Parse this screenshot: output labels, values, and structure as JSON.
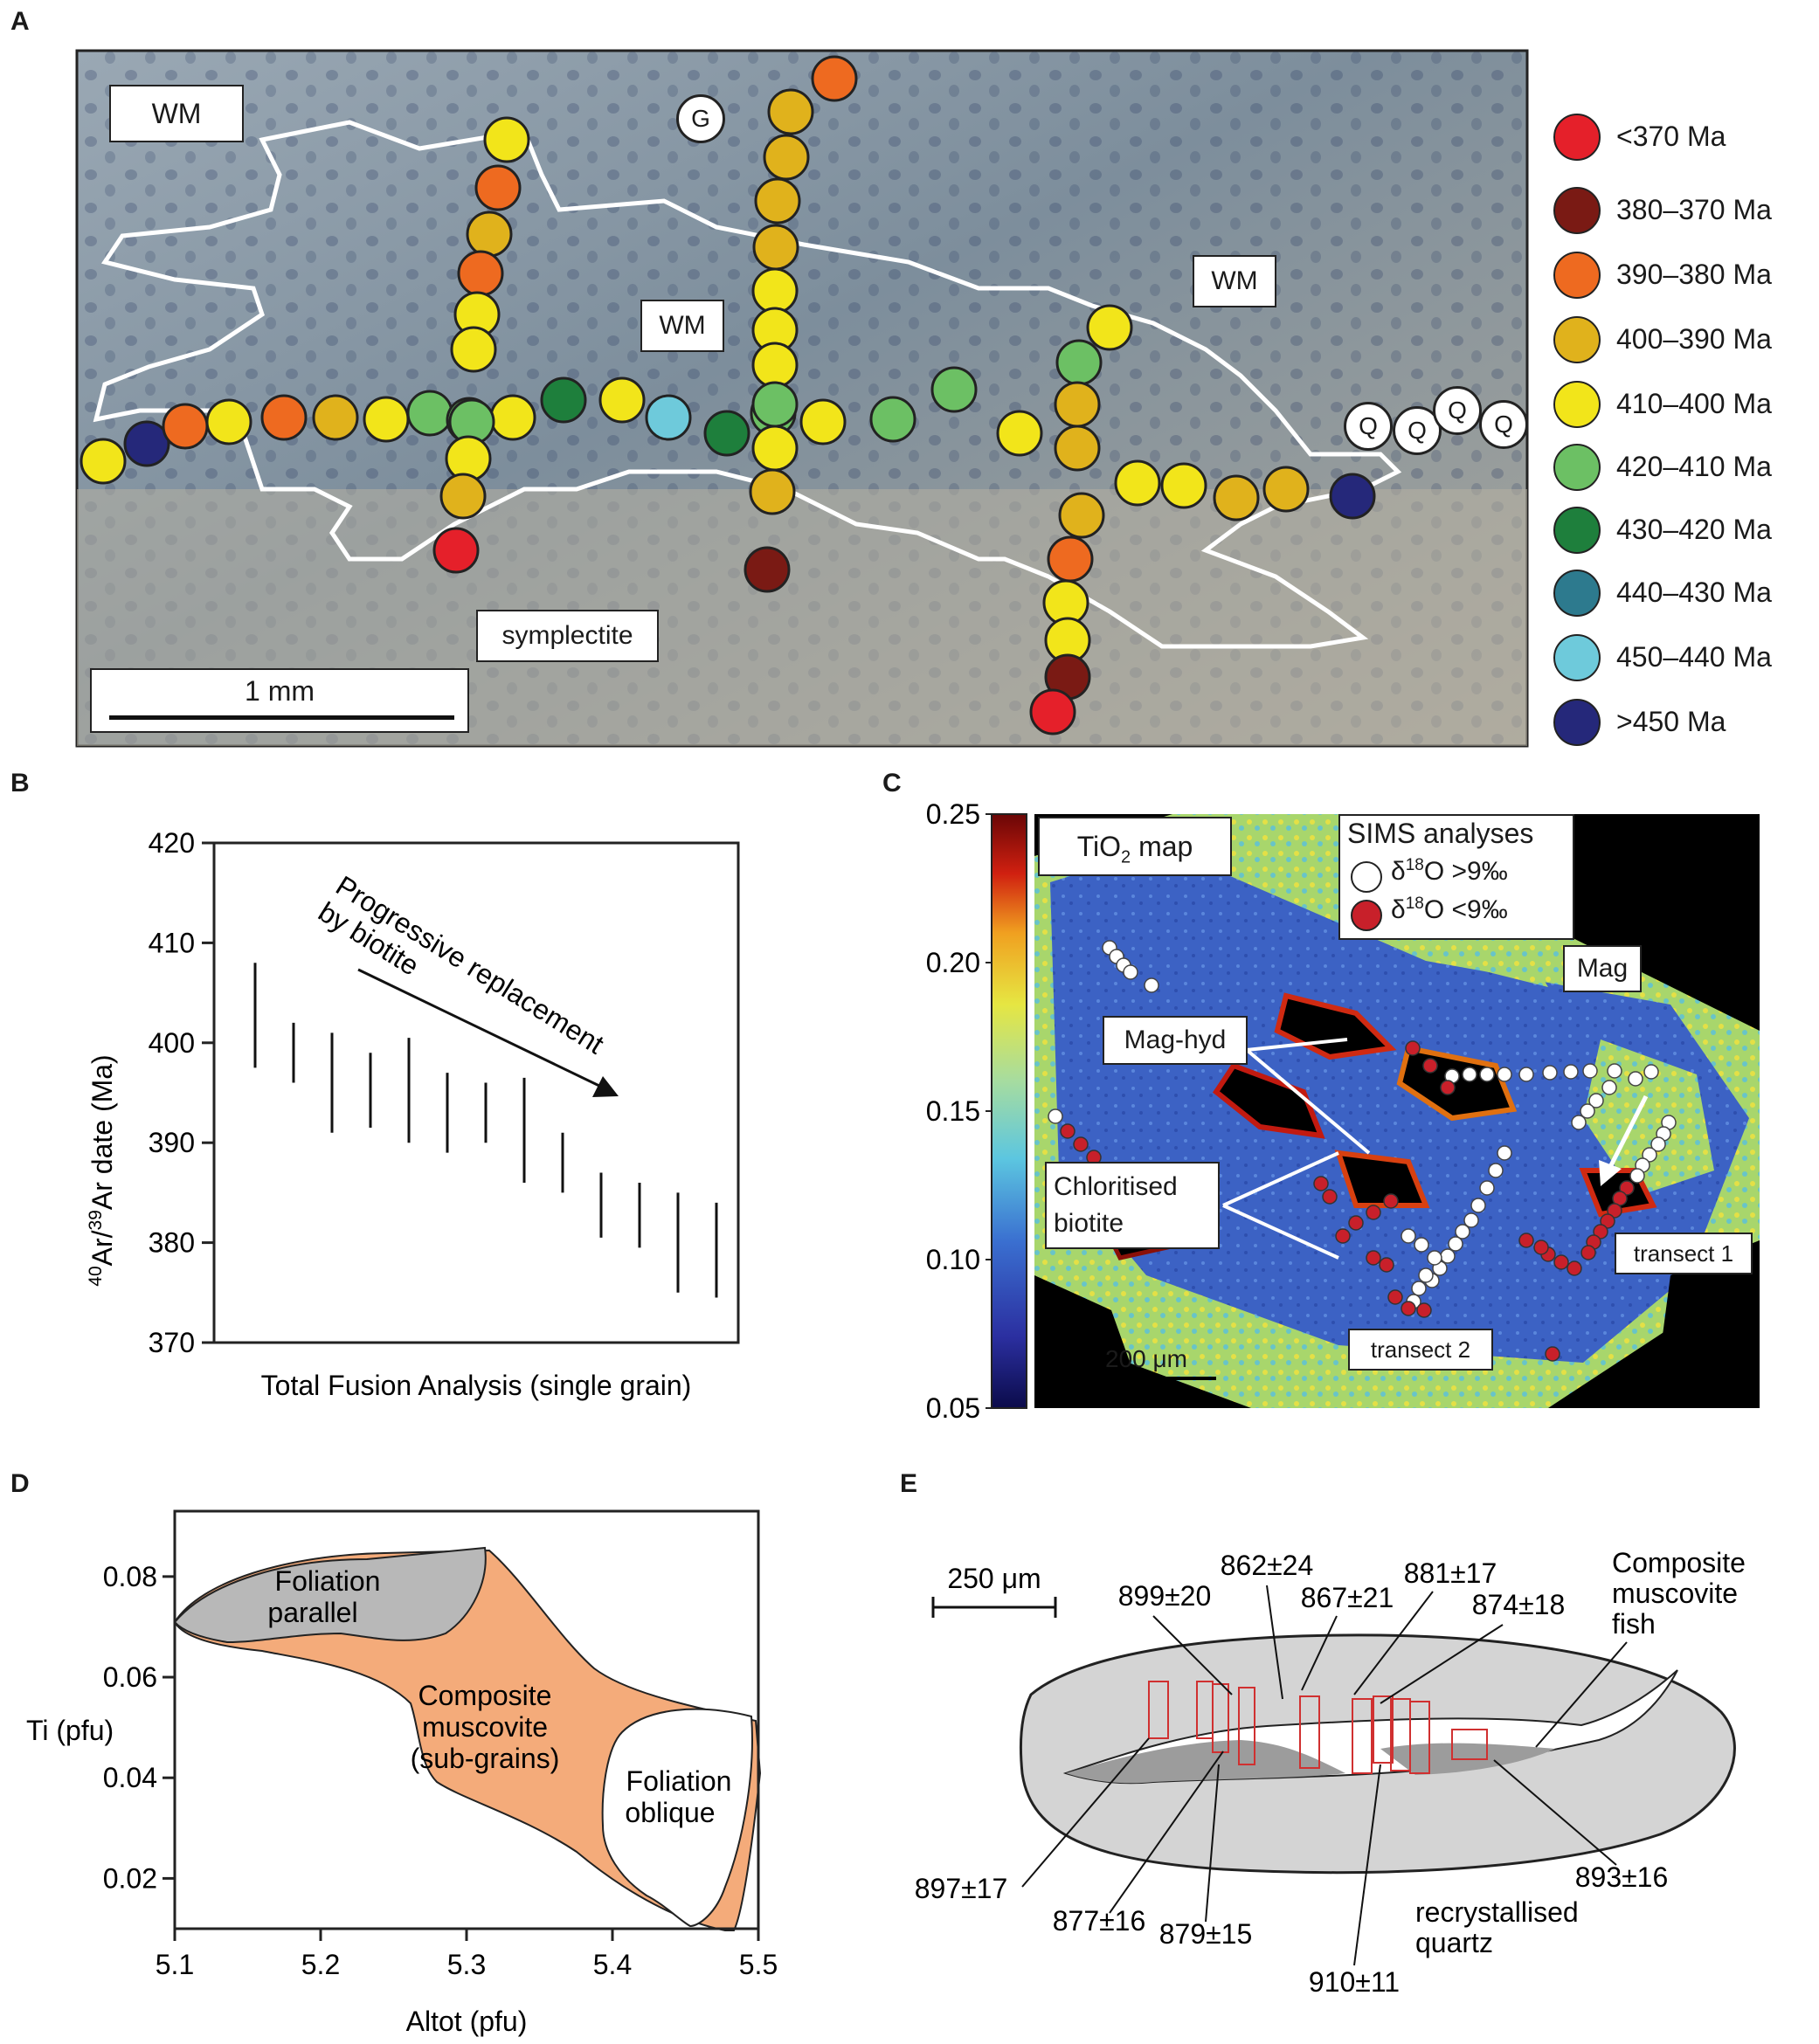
{
  "panel_labels": {
    "a": "A",
    "b": "B",
    "c": "C",
    "d": "D",
    "e": "E"
  },
  "panel_a": {
    "labels": {
      "wm1": "WM",
      "wm2": "WM",
      "wm3": "WM",
      "g": "G",
      "q": "Q",
      "symplectite": "symplectite"
    },
    "scale_label": "1 mm",
    "legend": [
      {
        "label": "<370 Ma",
        "color": "#e5202a"
      },
      {
        "label": "380–370 Ma",
        "color": "#7a1a14"
      },
      {
        "label": "390–380 Ma",
        "color": "#ee6a20"
      },
      {
        "label": "400–390 Ma",
        "color": "#e0b21c"
      },
      {
        "label": "410–400 Ma",
        "color": "#f2e51a"
      },
      {
        "label": "420–410 Ma",
        "color": "#6cc064"
      },
      {
        "label": "430–420 Ma",
        "color": "#1e7f3c"
      },
      {
        "label": "440–430 Ma",
        "color": "#2d7a8e"
      },
      {
        "label": "450–440 Ma",
        "color": "#6ecadb"
      },
      {
        "label": ">450 Ma",
        "color": "#25287a"
      }
    ]
  },
  "panel_b": {
    "chart_data": {
      "type": "errorbar",
      "ylabel_prefix": "40",
      "ylabel_mid": "Ar/",
      "ylabel_sup2": "39",
      "ylabel_suffix": "Ar date (Ma)",
      "xlabel": "Total Fusion Analysis (single grain)",
      "ylim": [
        370,
        420
      ],
      "yticks": [
        370,
        380,
        390,
        400,
        410,
        420
      ],
      "annotation_line1": "Progressive replacement",
      "annotation_line2": "by biotite",
      "intervals": [
        [
          397.5,
          408
        ],
        [
          396,
          402
        ],
        [
          391,
          401
        ],
        [
          391.5,
          399
        ],
        [
          390,
          400.5
        ],
        [
          389,
          397
        ],
        [
          390,
          396
        ],
        [
          386,
          396.5
        ],
        [
          385,
          391
        ],
        [
          380.5,
          387
        ],
        [
          379.5,
          386
        ],
        [
          375,
          385
        ],
        [
          374.5,
          384
        ]
      ]
    }
  },
  "panel_c": {
    "colorbar_ticks": [
      "0.25",
      "0.20",
      "0.15",
      "0.10",
      "0.05"
    ],
    "map_title": "TiO",
    "map_title_sub": "2",
    "map_title_rest": " map",
    "legend_title": "SIMS analyses",
    "legend_white": "δ18O >9‰",
    "legend_red": "δ18O <9‰",
    "delta": "δ",
    "sup18": "18",
    "O_gt": "O >9‰",
    "O_lt": "O <9‰",
    "labels": {
      "mag": "Mag",
      "maghyd": "Mag-hyd",
      "chlor1": "Chloritised",
      "chlor2": "biotite",
      "t1": "transect 1",
      "t2": "transect 2"
    },
    "scale_label": "200 μm"
  },
  "panel_d": {
    "chart_data": {
      "type": "field-diagram",
      "xlabel": "Altot (pfu)",
      "ylabel": "Ti (pfu)",
      "xticks": [
        "5.1",
        "5.2",
        "5.3",
        "5.4",
        "5.5"
      ],
      "yticks": [
        "0.02",
        "0.04",
        "0.06",
        "0.08"
      ],
      "xlim": [
        5.1,
        5.5
      ],
      "ylim": [
        0.01,
        0.093
      ],
      "fields": [
        {
          "line1": "Foliation",
          "line2": "parallel"
        },
        {
          "line1": "Composite",
          "line2": "muscovite",
          "line3": "(sub-grains)"
        },
        {
          "line1": "Foliation",
          "line2": "oblique"
        }
      ]
    }
  },
  "panel_e": {
    "scale_label": "250 μm",
    "values_top": [
      "862±24",
      "899±20",
      "867±21",
      "881±17",
      "874±18"
    ],
    "values_bottom": [
      "897±17",
      "877±16",
      "879±15",
      "910±11",
      "893±16"
    ],
    "fish_label": [
      "Composite",
      "muscovite",
      "fish"
    ],
    "quartz_label": [
      "recrystallised",
      "quartz"
    ]
  }
}
